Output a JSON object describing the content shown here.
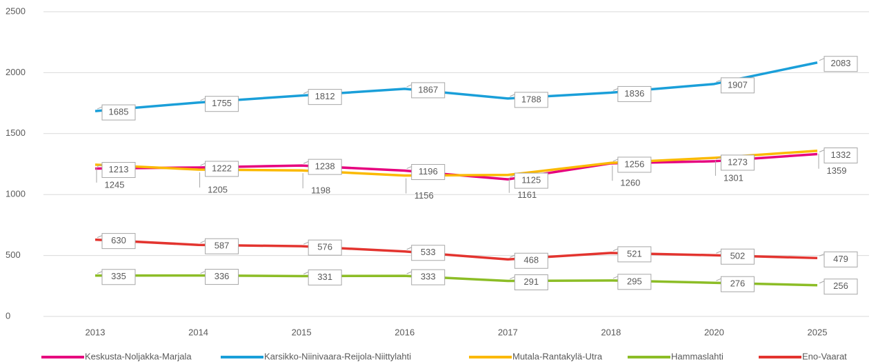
{
  "chart_data": {
    "type": "line",
    "categories": [
      "2013",
      "2014",
      "2015",
      "2016",
      "2017",
      "2018",
      "2020",
      "2025"
    ],
    "series": [
      {
        "name": "Keskusta-Noljakka-Marjala",
        "color": "#e6007e",
        "values": [
          1213,
          1222,
          1238,
          1196,
          1125,
          1256,
          1273,
          1332
        ]
      },
      {
        "name": "Karsikko-Niinivaara-Reijola-Niittylahti",
        "color": "#1a9fd9",
        "values": [
          1685,
          1755,
          1812,
          1867,
          1788,
          1836,
          1907,
          2083
        ]
      },
      {
        "name": "Mutala-Rantakylä-Utra",
        "color": "#fbb900",
        "values": [
          1245,
          1205,
          1198,
          1156,
          1161,
          1260,
          1301,
          1359
        ]
      },
      {
        "name": "Hammaslahti",
        "color": "#8cbd26",
        "values": [
          335,
          336,
          331,
          333,
          291,
          295,
          276,
          256
        ]
      },
      {
        "name": "Eno-Vaarat",
        "color": "#e3342f",
        "values": [
          630,
          587,
          576,
          533,
          468,
          521,
          502,
          479
        ]
      }
    ],
    "ylim": [
      0,
      2500
    ],
    "yticks": [
      0,
      500,
      1000,
      1500,
      2000,
      2500
    ],
    "grid": true,
    "legend": "bottom"
  }
}
